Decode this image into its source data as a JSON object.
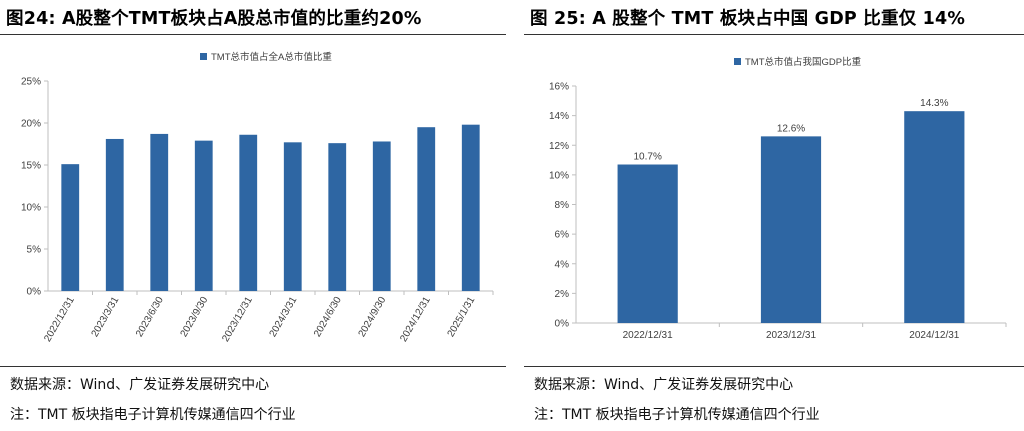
{
  "left": {
    "title": "图24:  A股整个TMT板块占A股总市值的比重约20%",
    "source": "数据来源：Wind、广发证券发展研究中心",
    "note": "注：TMT 板块指电子计算机传媒通信四个行业"
  },
  "right": {
    "title": "图 25:  A 股整个 TMT 板块占中国 GDP 比重仅 14%",
    "source": "数据来源：Wind、广发证券发展研究中心",
    "note": "注：TMT 板块指电子计算机传媒通信四个行业"
  },
  "colors": {
    "bar": "#2e66a3",
    "axis": "#bfbfbf",
    "text": "#404040"
  },
  "chart_data": [
    {
      "type": "bar",
      "title": "",
      "legend": "TMT总市值占全A总市值比重",
      "legend_position": "top",
      "categories": [
        "2022/12/31",
        "2023/3/31",
        "2023/6/30",
        "2023/9/30",
        "2023/12/31",
        "2024/3/31",
        "2024/6/30",
        "2024/9/30",
        "2024/12/31",
        "2025/1/31"
      ],
      "values": [
        15.1,
        18.1,
        18.7,
        17.9,
        18.6,
        17.7,
        17.6,
        17.8,
        19.5,
        19.8
      ],
      "ylim": [
        0,
        25
      ],
      "yticks": [
        0,
        5,
        10,
        15,
        20,
        25
      ],
      "ytick_labels": [
        "0%",
        "5%",
        "10%",
        "15%",
        "20%",
        "25%"
      ],
      "xlabel": "",
      "ylabel": "",
      "grid": false,
      "rotated_x_labels": true
    },
    {
      "type": "bar",
      "title": "",
      "legend": "TMT总市值占我国GDP比重",
      "legend_position": "top",
      "categories": [
        "2022/12/31",
        "2023/12/31",
        "2024/12/31"
      ],
      "values": [
        10.7,
        12.6,
        14.3
      ],
      "data_labels": [
        "10.7%",
        "12.6%",
        "14.3%"
      ],
      "ylim": [
        0,
        16
      ],
      "yticks": [
        0,
        2,
        4,
        6,
        8,
        10,
        12,
        14,
        16
      ],
      "ytick_labels": [
        "0%",
        "2%",
        "4%",
        "6%",
        "8%",
        "10%",
        "12%",
        "14%",
        "16%"
      ],
      "xlabel": "",
      "ylabel": "",
      "grid": false,
      "rotated_x_labels": false
    }
  ]
}
